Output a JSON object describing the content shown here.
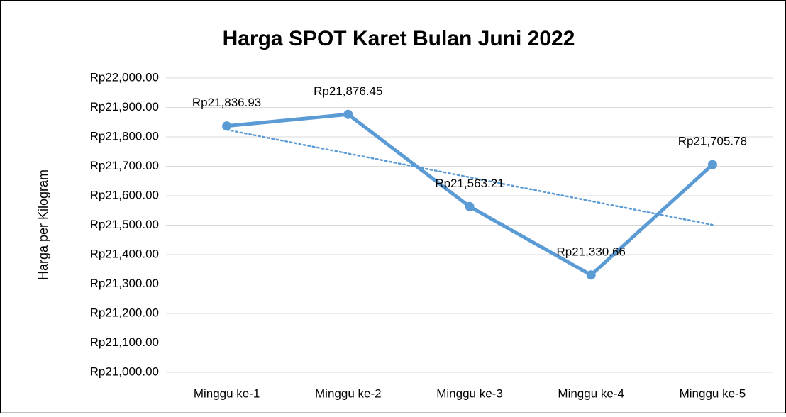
{
  "chart_data": {
    "type": "line",
    "title": "Harga SPOT Karet Bulan Juni 2022",
    "y_label": "Harga per Kilogram",
    "categories": [
      "Minggu ke-1",
      "Minggu ke-2",
      "Minggu ke-3",
      "Minggu ke-4",
      "Minggu ke-5"
    ],
    "series": [
      {
        "values": [
          21836.93,
          21876.45,
          21563.21,
          21330.66,
          21705.78
        ],
        "value_labels": [
          "Rp21,836.93",
          "Rp21,876.45",
          "Rp21,563.21",
          "Rp21,330.66",
          "Rp21,705.78"
        ],
        "color": "#5b9bd5"
      }
    ],
    "trendline": "linear",
    "ylim": [
      21000,
      22000
    ],
    "yticks": [
      {
        "value": 21000,
        "label": "Rp21,000.00"
      },
      {
        "value": 21100,
        "label": "Rp21,100.00"
      },
      {
        "value": 21200,
        "label": "Rp21,200.00"
      },
      {
        "value": 21300,
        "label": "Rp21,300.00"
      },
      {
        "value": 21400,
        "label": "Rp21,400.00"
      },
      {
        "value": 21500,
        "label": "Rp21,500.00"
      },
      {
        "value": 21600,
        "label": "Rp21,600.00"
      },
      {
        "value": 21700,
        "label": "Rp21,700.00"
      },
      {
        "value": 21800,
        "label": "Rp21,800.00"
      },
      {
        "value": 21900,
        "label": "Rp21,900.00"
      },
      {
        "value": 22000,
        "label": "Rp22,000.00"
      }
    ],
    "grid": true
  }
}
